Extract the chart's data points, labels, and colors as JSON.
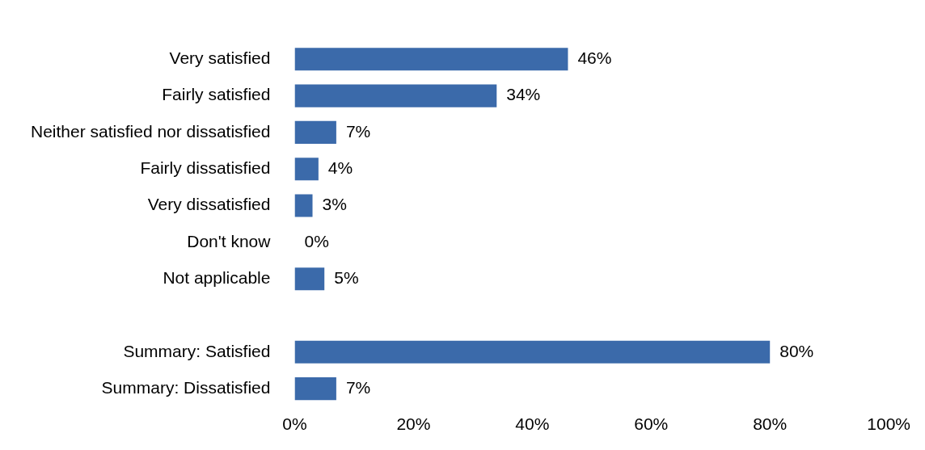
{
  "chart_data": {
    "type": "bar",
    "orientation": "horizontal",
    "categories": [
      "Very satisfied",
      "Fairly satisfied",
      "Neither satisfied nor dissatisfied",
      "Fairly dissatisfied",
      "Very dissatisfied",
      "Don't know",
      "Not applicable",
      null,
      "Summary: Satisfied",
      "Summary: Dissatisfied"
    ],
    "values": [
      46,
      34,
      7,
      4,
      3,
      0,
      5,
      null,
      80,
      7
    ],
    "value_labels": [
      "46%",
      "34%",
      "7%",
      "4%",
      "3%",
      "0%",
      "5%",
      null,
      "80%",
      "7%"
    ],
    "color": "#3b6aaa",
    "xlim": [
      0,
      100
    ],
    "xticks": [
      {
        "value": 0,
        "label": "0%"
      },
      {
        "value": 20,
        "label": "20%"
      },
      {
        "value": 40,
        "label": "40%"
      },
      {
        "value": 60,
        "label": "60%"
      },
      {
        "value": 80,
        "label": "80%"
      },
      {
        "value": 100,
        "label": "100%"
      }
    ],
    "grid": false,
    "legend": false
  }
}
